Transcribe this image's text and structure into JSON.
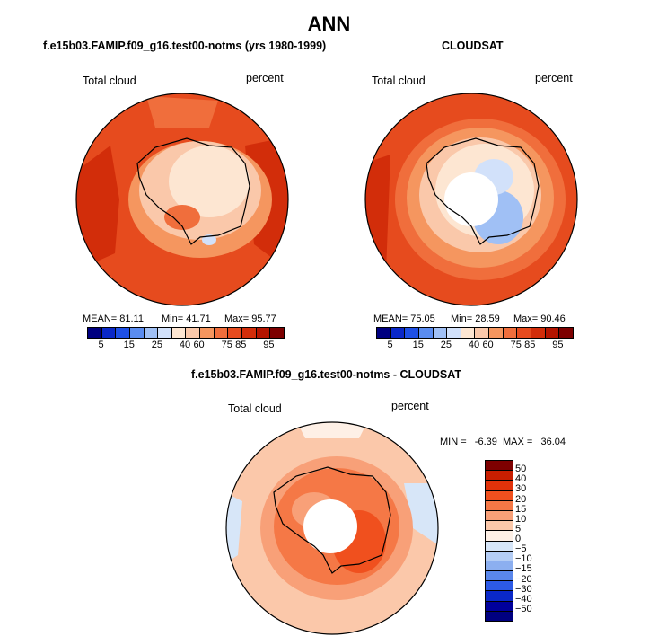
{
  "main_title": "ANN",
  "panels": [
    {
      "title": "f.e15b03.FAMIP.f09_g16.test00-notms (yrs 1980-1999)",
      "variable": "Total cloud",
      "units": "percent",
      "mean": "MEAN=  81.11",
      "min": "Min=  41.71",
      "max": "Max=  95.77"
    },
    {
      "title": "CLOUDSAT",
      "variable": "Total cloud",
      "units": "percent",
      "mean": "MEAN=  75.05",
      "min": "Min=  28.59",
      "max": "Max=  90.46"
    },
    {
      "title": "f.e15b03.FAMIP.f09_g16.test00-notms - CLOUDSAT",
      "variable": "Total cloud",
      "units": "percent",
      "minmax": "MIN =   -6.39  MAX =   36.04"
    }
  ],
  "colorbar_abs": {
    "labels": [
      "5",
      "15",
      "25",
      "40",
      "60",
      "75",
      "85",
      "95"
    ],
    "colors": [
      "#000080",
      "#0a28c8",
      "#1e50e6",
      "#5a8cf0",
      "#a0c0f5",
      "#d2e1fa",
      "#fde6d2",
      "#fac8aa",
      "#f5965f",
      "#f06e3c",
      "#e64b1e",
      "#d22d0a",
      "#b41400",
      "#7d0000"
    ]
  },
  "colorbar_diff": {
    "labels": [
      "50",
      "40",
      "30",
      "20",
      "15",
      "10",
      "5",
      "0",
      "−5",
      "−10",
      "−15",
      "−20",
      "−30",
      "−40",
      "−50"
    ],
    "colors": [
      "#7d0000",
      "#c81e00",
      "#e1320a",
      "#f0501e",
      "#f57846",
      "#f8a078",
      "#fbc8aa",
      "#fef0e6",
      "#d7e6f8",
      "#b4cdf5",
      "#8caff0",
      "#5a87eb",
      "#2d5ae6",
      "#0a28c8",
      "#00009b",
      "#000080"
    ]
  }
}
